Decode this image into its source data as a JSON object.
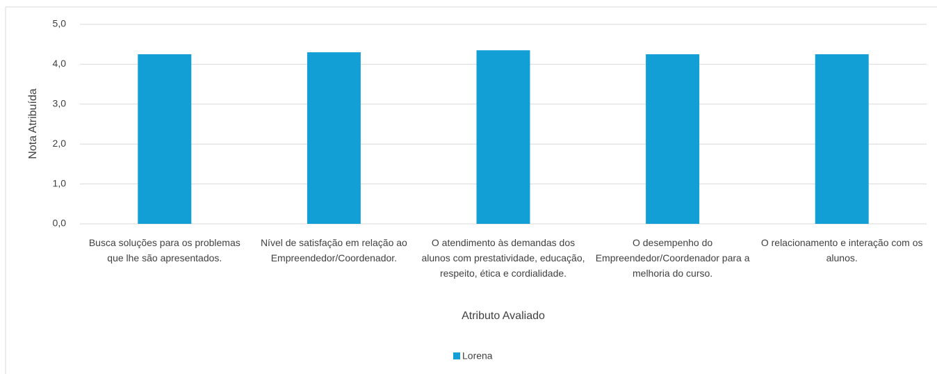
{
  "chart_data": {
    "type": "bar",
    "categories": [
      "Busca soluções para os problemas que lhe são apresentados.",
      "Nível de satisfação em relação ao Empreendedor/Coordenador.",
      "O atendimento às demandas dos alunos com prestatividade, educação, respeito, ética e cordialidade.",
      "O desempenho do Empreendedor/Coordenador para a melhoria do curso.",
      "O relacionamento e interação com os alunos."
    ],
    "series": [
      {
        "name": "Lorena",
        "color": "#119fd6",
        "values": [
          4.25,
          4.3,
          4.35,
          4.25,
          4.25
        ]
      }
    ],
    "xlabel": "Atributo Avaliado",
    "ylabel": "Nota Atribuída",
    "ylim": [
      0,
      5
    ],
    "yticks": [
      {
        "value": 0,
        "label": "0,0"
      },
      {
        "value": 1,
        "label": "1,0"
      },
      {
        "value": 2,
        "label": "2,0"
      },
      {
        "value": 3,
        "label": "3,0"
      },
      {
        "value": 4,
        "label": "4,0"
      },
      {
        "value": 5,
        "label": "5,0"
      }
    ],
    "grid": true,
    "legend": "bottom"
  }
}
